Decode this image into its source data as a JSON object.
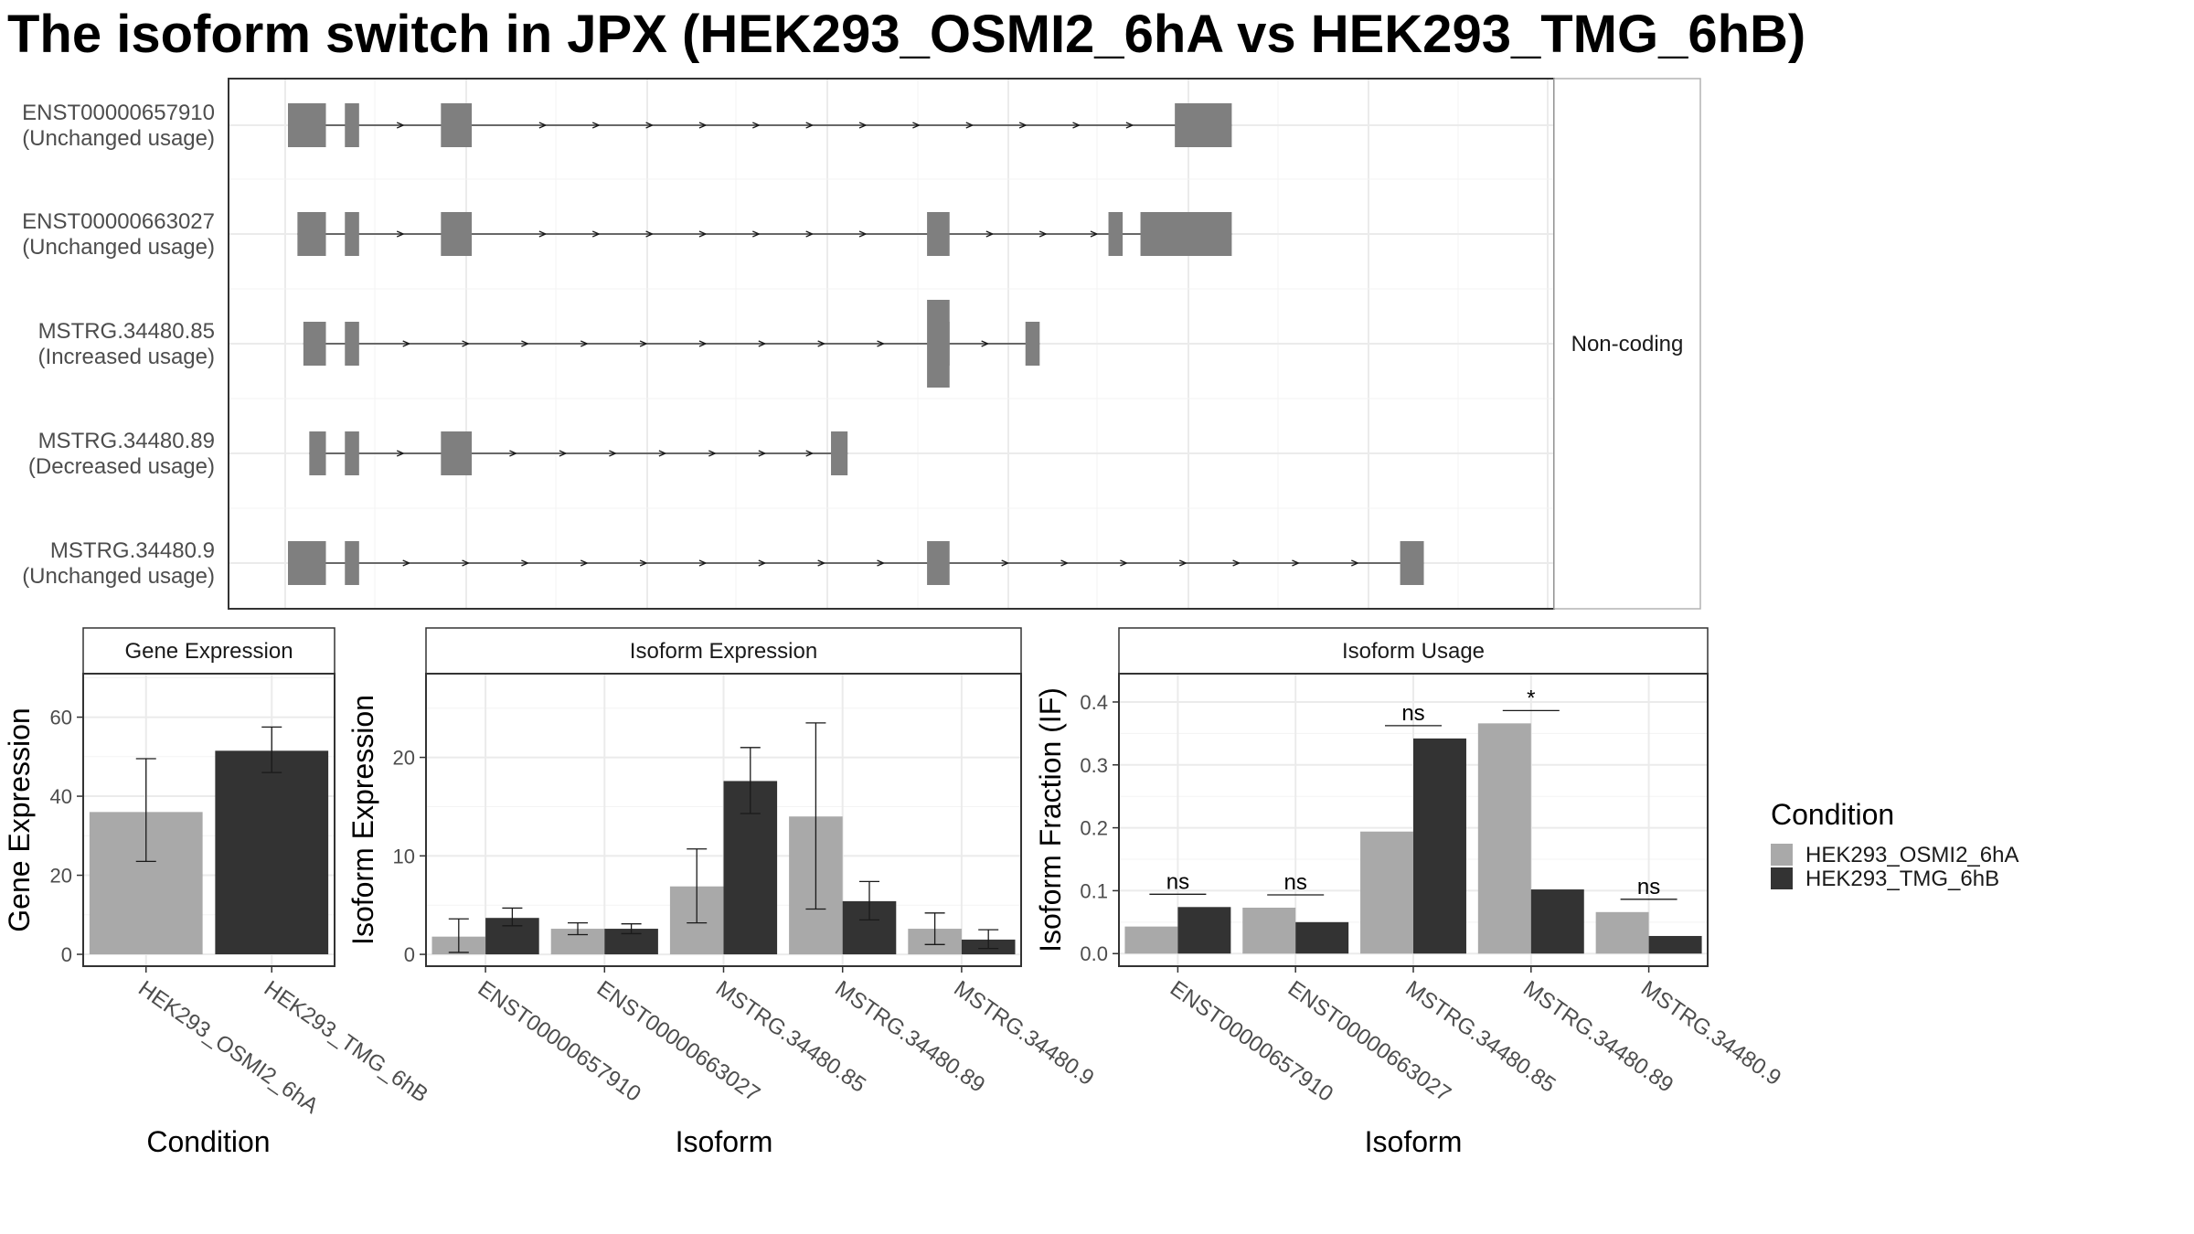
{
  "title": "The isoform switch in JPX (HEK293_OSMI2_6hA vs HEK293_TMG_6hB)",
  "colors": {
    "exon": "#7f7f7f",
    "condition_a": "#a9a9a9",
    "condition_b": "#333333",
    "panel_border": "#333333",
    "grid": "#ebebeb",
    "strip_fill": "#ffffff"
  },
  "chart_data": [
    {
      "type": "gene-structure",
      "strip_label": "Non-coding",
      "x_range": [
        0,
        1
      ],
      "isoforms": [
        {
          "name": "ENST00000657910",
          "status": "(Unchanged usage)",
          "exons": [
            [
              0.0,
              0.032
            ],
            [
              0.048,
              0.06
            ],
            [
              0.129,
              0.155
            ],
            [
              0.748,
              0.796
            ]
          ],
          "intron_arrows": [
            0.095,
            0.215,
            0.26,
            0.305,
            0.35,
            0.395,
            0.44,
            0.485,
            0.53,
            0.575,
            0.62,
            0.665,
            0.71
          ]
        },
        {
          "name": "ENST00000663027",
          "status": "(Unchanged usage)",
          "exons": [
            [
              0.008,
              0.032
            ],
            [
              0.048,
              0.06
            ],
            [
              0.129,
              0.155
            ],
            [
              0.539,
              0.558
            ],
            [
              0.692,
              0.704
            ],
            [
              0.719,
              0.796
            ]
          ],
          "intron_arrows": [
            0.095,
            0.215,
            0.26,
            0.305,
            0.35,
            0.395,
            0.44,
            0.485,
            0.592,
            0.637,
            0.68
          ]
        },
        {
          "name": "MSTRG.34480.85",
          "status": "(Increased usage)",
          "exons": [
            [
              0.013,
              0.032
            ],
            [
              0.048,
              0.06
            ],
            [
              0.539,
              0.558,
              "tall"
            ],
            [
              0.553,
              0.558
            ],
            [
              0.622,
              0.634
            ]
          ],
          "intron_arrows": [
            0.1,
            0.15,
            0.2,
            0.25,
            0.3,
            0.35,
            0.4,
            0.45,
            0.5,
            0.588
          ]
        },
        {
          "name": "MSTRG.34480.89",
          "status": "(Decreased usage)",
          "exons": [
            [
              0.018,
              0.032
            ],
            [
              0.048,
              0.06
            ],
            [
              0.129,
              0.155
            ],
            [
              0.458,
              0.472
            ]
          ],
          "intron_arrows": [
            0.095,
            0.19,
            0.232,
            0.274,
            0.316,
            0.358,
            0.4,
            0.44
          ]
        },
        {
          "name": "MSTRG.34480.9",
          "status": "(Unchanged usage)",
          "exons": [
            [
              0.0,
              0.032
            ],
            [
              0.048,
              0.06
            ],
            [
              0.539,
              0.558
            ],
            [
              0.938,
              0.958
            ]
          ],
          "intron_arrows": [
            0.1,
            0.15,
            0.2,
            0.25,
            0.3,
            0.35,
            0.4,
            0.45,
            0.5,
            0.605,
            0.655,
            0.705,
            0.755,
            0.8,
            0.85,
            0.9
          ]
        }
      ]
    },
    {
      "type": "bar",
      "strip_label": "Gene Expression",
      "xlabel": "Condition",
      "ylabel": "Gene Expression",
      "ylim": [
        -3,
        71
      ],
      "yticks": [
        0,
        20,
        40,
        60
      ],
      "categories": [
        "HEK293_OSMI2_6hA",
        "HEK293_TMG_6hB"
      ],
      "values": [
        36,
        51.5
      ],
      "errors": [
        [
          23.5,
          49.5
        ],
        [
          46,
          57.5
        ]
      ]
    },
    {
      "type": "bar",
      "strip_label": "Isoform Expression",
      "xlabel": "Isoform",
      "ylabel": "Isoform Expression",
      "ylim": [
        -1.2,
        28.5
      ],
      "yticks": [
        0,
        10,
        20
      ],
      "categories": [
        "ENST00000657910",
        "ENST00000663027",
        "MSTRG.34480.85",
        "MSTRG.34480.89",
        "MSTRG.34480.9"
      ],
      "series": [
        {
          "name": "HEK293_OSMI2_6hA",
          "values": [
            1.8,
            2.6,
            6.9,
            14.0,
            2.6
          ],
          "errors": [
            [
              0.2,
              3.6
            ],
            [
              2.0,
              3.2
            ],
            [
              3.2,
              10.7
            ],
            [
              4.6,
              23.5
            ],
            [
              1.0,
              4.2
            ]
          ]
        },
        {
          "name": "HEK293_TMG_6hB",
          "values": [
            3.7,
            2.6,
            17.6,
            5.4,
            1.5
          ],
          "errors": [
            [
              2.9,
              4.7
            ],
            [
              2.1,
              3.1
            ],
            [
              14.3,
              21.0
            ],
            [
              3.5,
              7.4
            ],
            [
              0.6,
              2.5
            ]
          ]
        }
      ]
    },
    {
      "type": "bar",
      "strip_label": "Isoform Usage",
      "xlabel": "Isoform",
      "ylabel": "Isoform Fraction (IF)",
      "ylim": [
        -0.02,
        0.445
      ],
      "yticks": [
        0.0,
        0.1,
        0.2,
        0.3,
        0.4
      ],
      "ytick_labels": [
        "0.0",
        "0.1",
        "0.2",
        "0.3",
        "0.4"
      ],
      "categories": [
        "ENST00000657910",
        "ENST00000663027",
        "MSTRG.34480.85",
        "MSTRG.34480.89",
        "MSTRG.34480.9"
      ],
      "series": [
        {
          "name": "HEK293_OSMI2_6hA",
          "values": [
            0.043,
            0.073,
            0.194,
            0.366,
            0.066
          ]
        },
        {
          "name": "HEK293_TMG_6hB",
          "values": [
            0.074,
            0.05,
            0.342,
            0.102,
            0.028
          ]
        }
      ],
      "significance": [
        "ns",
        "ns",
        "ns",
        "*",
        "ns"
      ]
    }
  ],
  "legend": {
    "title": "Condition",
    "items": [
      "HEK293_OSMI2_6hA",
      "HEK293_TMG_6hB"
    ]
  }
}
